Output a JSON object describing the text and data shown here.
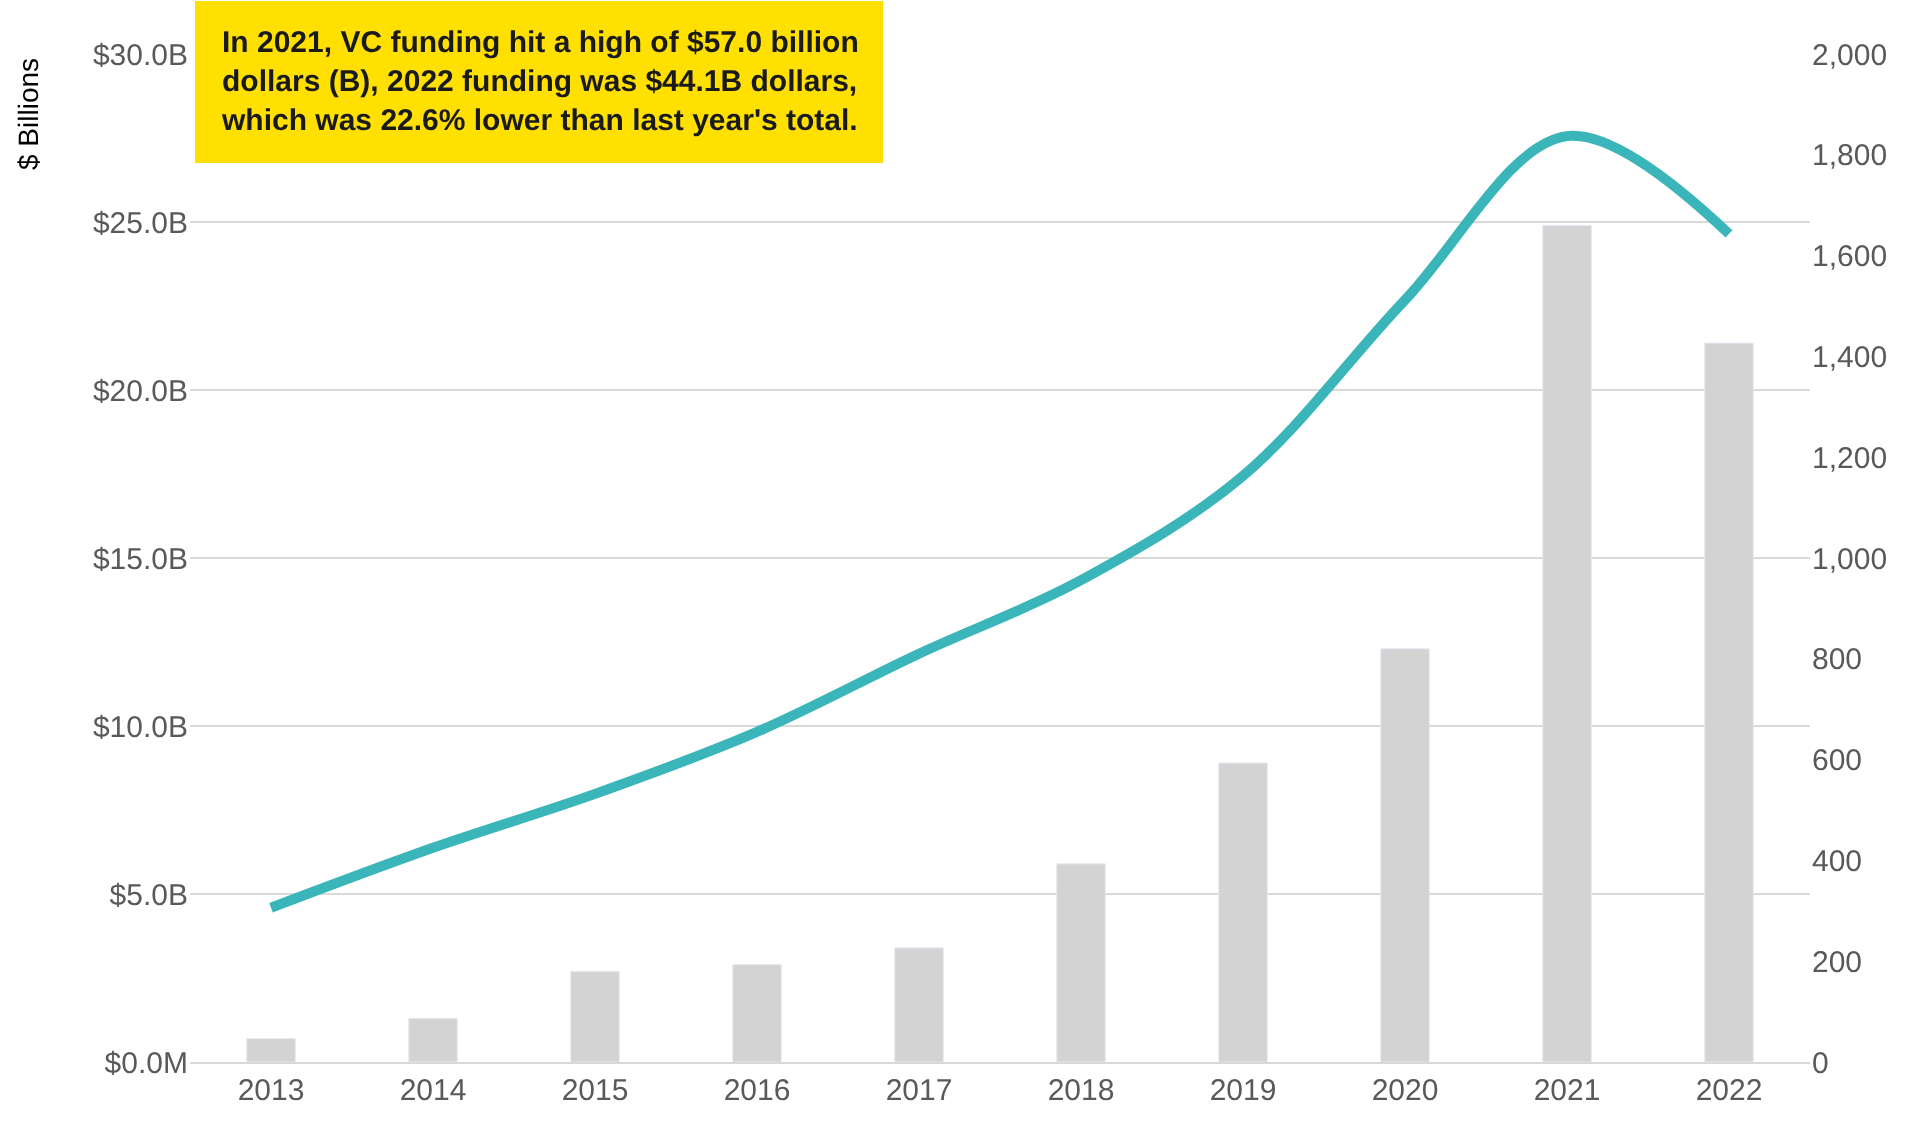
{
  "chart_data": {
    "type": "bar",
    "ylabel": "$ Billions",
    "annotations": [
      "In 2021, VC funding hit a high of $57.0 billion\ndollars (B), 2022 funding was $44.1B dollars,\nwhich was 22.6% lower than last year's total."
    ],
    "categories": [
      "2013",
      "2014",
      "2015",
      "2016",
      "2017",
      "2018",
      "2019",
      "2020",
      "2021",
      "2022"
    ],
    "series": [
      {
        "color": "#d3d3d3",
        "values": [
          0.7,
          1.3,
          2.7,
          2.9,
          3.4,
          5.9,
          8.9,
          12.3,
          24.9,
          21.4
        ]
      },
      {
        "type": "line",
        "axis": "y2",
        "color": "#3ab5b9",
        "values": [
          306,
          425,
          532,
          655,
          810,
          956,
          1163,
          1512,
          1837,
          1643
        ]
      }
    ],
    "ylim": [
      0,
      30
    ],
    "yticks": [
      {
        "value": 0,
        "label": "$0.0M"
      },
      {
        "value": 5,
        "label": "$5.0B"
      },
      {
        "value": 10,
        "label": "$10.0B"
      },
      {
        "value": 15,
        "label": "$15.0B"
      },
      {
        "value": 20,
        "label": "$20.0B"
      },
      {
        "value": 25,
        "label": "$25.0B"
      },
      {
        "value": 30,
        "label": "$30.0B"
      }
    ],
    "y2lim": [
      0,
      2000
    ],
    "y2ticks": [
      0,
      200,
      400,
      600,
      800,
      {
        "value": 1000,
        "label": "1,000"
      },
      {
        "value": 1200,
        "label": "1,200"
      },
      {
        "value": 1400,
        "label": "1,400"
      },
      {
        "value": 1600,
        "label": "1,600"
      },
      {
        "value": 1800,
        "label": "1,800"
      },
      {
        "value": 2000,
        "label": "2,000"
      }
    ],
    "grid": "y",
    "marker": "none"
  }
}
